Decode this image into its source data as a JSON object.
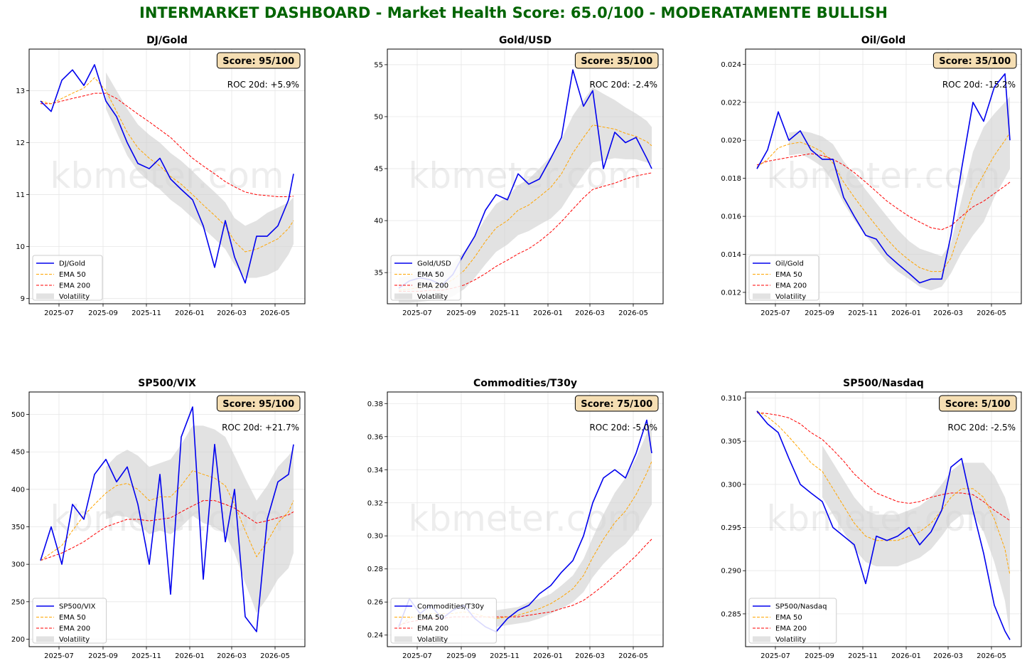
{
  "dashboard": {
    "title": "INTERMARKET DASHBOARD - Market Health Score: 65.0/100 - MODERATAMENTE BULLISH",
    "watermark": "kbmeter.com",
    "colors": {
      "title": "#006400",
      "price": "#0000ee",
      "ema50": "#ffa500",
      "ema200": "#ff0000",
      "volatility": "#d3d3d3",
      "score_box": "#f5deb3"
    },
    "x_ticks": [
      "2025-07",
      "2025-09",
      "2025-11",
      "2026-01",
      "2026-03",
      "2026-05"
    ],
    "legend_labels": {
      "ema50": "EMA 50",
      "ema200": "EMA 200",
      "vol": "Volatility"
    }
  },
  "chart_data": [
    {
      "type": "line",
      "title": "DJ/Gold",
      "score": "Score: 95/100",
      "roc": "ROC 20d: +5.9%",
      "ylim": [
        8.9,
        13.8
      ],
      "yticks": [
        "9",
        "10",
        "11",
        "12",
        "13"
      ],
      "ytick_values": [
        9,
        10,
        11,
        12,
        13
      ],
      "x": [
        "2025-06-05",
        "2025-06-20",
        "2025-07-05",
        "2025-07-20",
        "2025-08-05",
        "2025-08-20",
        "2025-09-05",
        "2025-09-20",
        "2025-10-05",
        "2025-10-20",
        "2025-11-05",
        "2025-11-20",
        "2025-12-05",
        "2025-12-20",
        "2026-01-05",
        "2026-01-20",
        "2026-02-05",
        "2026-02-20",
        "2026-03-05",
        "2026-03-20",
        "2026-04-05",
        "2026-04-20",
        "2026-05-05",
        "2026-05-20",
        "2026-05-27"
      ],
      "series": [
        {
          "name": "DJ/Gold",
          "role": "price",
          "values": [
            12.8,
            12.6,
            13.2,
            13.4,
            13.1,
            13.5,
            12.8,
            12.5,
            12.0,
            11.6,
            11.5,
            11.7,
            11.3,
            11.1,
            10.9,
            10.4,
            9.6,
            10.5,
            9.8,
            9.3,
            10.2,
            10.2,
            10.4,
            10.9,
            11.4
          ]
        },
        {
          "name": "EMA 50",
          "values": [
            12.8,
            12.75,
            12.85,
            12.95,
            13.05,
            13.25,
            13.0,
            12.6,
            12.2,
            11.9,
            11.7,
            11.55,
            11.35,
            11.2,
            11.0,
            10.8,
            10.6,
            10.4,
            10.1,
            9.9,
            9.95,
            10.05,
            10.15,
            10.35,
            10.5
          ]
        },
        {
          "name": "EMA 200",
          "values": [
            12.75,
            12.75,
            12.8,
            12.85,
            12.9,
            12.95,
            12.95,
            12.85,
            12.7,
            12.55,
            12.4,
            12.25,
            12.1,
            11.9,
            11.7,
            11.55,
            11.4,
            11.25,
            11.15,
            11.05,
            11.0,
            10.98,
            10.96,
            10.96,
            10.97
          ]
        }
      ],
      "vol_from": 6,
      "vol_half": [
        0.35,
        0.4,
        0.45,
        0.45,
        0.45,
        0.45,
        0.45,
        0.45,
        0.45,
        0.45,
        0.45,
        0.45,
        0.45,
        0.5,
        0.55,
        0.6,
        0.6,
        0.5,
        0.45
      ]
    },
    {
      "type": "line",
      "title": "Gold/USD",
      "score": "Score: 35/100",
      "roc": "ROC 20d: -2.4%",
      "ylim": [
        32,
        56.5
      ],
      "yticks": [
        "35",
        "40",
        "45",
        "50",
        "55"
      ],
      "ytick_values": [
        35,
        40,
        45,
        50,
        55
      ],
      "x": [
        "2025-06-05",
        "2025-06-20",
        "2025-07-05",
        "2025-07-20",
        "2025-08-05",
        "2025-08-20",
        "2025-09-05",
        "2025-09-20",
        "2025-10-05",
        "2025-10-20",
        "2025-11-05",
        "2025-11-20",
        "2025-12-05",
        "2025-12-20",
        "2026-01-05",
        "2026-01-20",
        "2026-02-05",
        "2026-02-20",
        "2026-03-05",
        "2026-03-20",
        "2026-04-05",
        "2026-04-20",
        "2026-05-05",
        "2026-05-20",
        "2026-05-27"
      ],
      "series": [
        {
          "name": "Gold/USD",
          "role": "price",
          "values": [
            33.5,
            34.2,
            34.5,
            34.3,
            33.8,
            34.8,
            36.8,
            38.5,
            41.0,
            42.5,
            42.0,
            44.5,
            43.5,
            44.0,
            46.0,
            48.0,
            54.5,
            51.0,
            52.5,
            45.0,
            48.5,
            47.5,
            48.0,
            46.0,
            45.0
          ]
        },
        {
          "name": "EMA 50",
          "values": [
            33.3,
            33.4,
            33.6,
            33.7,
            33.8,
            34.3,
            35.2,
            36.5,
            38.0,
            39.3,
            40.0,
            41.0,
            41.5,
            42.3,
            43.2,
            44.5,
            46.5,
            48.0,
            49.2,
            49.0,
            48.8,
            48.4,
            48.1,
            47.6,
            47.2
          ]
        },
        {
          "name": "EMA 200",
          "values": [
            33.2,
            33.2,
            33.2,
            33.3,
            33.3,
            33.5,
            33.8,
            34.3,
            34.9,
            35.6,
            36.2,
            36.8,
            37.3,
            38.0,
            38.9,
            39.9,
            41.1,
            42.2,
            43.0,
            43.3,
            43.6,
            44.0,
            44.3,
            44.5,
            44.6
          ]
        }
      ],
      "vol_from": 0,
      "vol_half": [
        1.2,
        1.3,
        1.4,
        1.4,
        1.5,
        1.6,
        1.8,
        2.0,
        2.2,
        2.3,
        2.3,
        2.4,
        2.5,
        2.7,
        3.0,
        3.3,
        3.6,
        3.6,
        3.6,
        3.2,
        2.8,
        2.5,
        2.2,
        2.0,
        1.8
      ]
    },
    {
      "type": "line",
      "title": "Oil/Gold",
      "score": "Score: 35/100",
      "roc": "ROC 20d: -15.2%",
      "ylim": [
        0.0114,
        0.0248
      ],
      "yticks": [
        "0.012",
        "0.014",
        "0.016",
        "0.018",
        "0.020",
        "0.022",
        "0.024"
      ],
      "ytick_values": [
        0.012,
        0.014,
        0.016,
        0.018,
        0.02,
        0.022,
        0.024
      ],
      "x": [
        "2025-06-05",
        "2025-06-20",
        "2025-07-05",
        "2025-07-20",
        "2025-08-05",
        "2025-08-20",
        "2025-09-05",
        "2025-09-20",
        "2025-10-05",
        "2025-10-20",
        "2025-11-05",
        "2025-11-20",
        "2025-12-05",
        "2025-12-20",
        "2026-01-05",
        "2026-01-20",
        "2026-02-05",
        "2026-02-20",
        "2026-03-05",
        "2026-03-20",
        "2026-04-05",
        "2026-04-20",
        "2026-05-05",
        "2026-05-20",
        "2026-05-27"
      ],
      "series": [
        {
          "name": "Oil/Gold",
          "role": "price",
          "values": [
            0.0185,
            0.0195,
            0.0215,
            0.02,
            0.0205,
            0.0195,
            0.019,
            0.019,
            0.017,
            0.016,
            0.015,
            0.0148,
            0.014,
            0.0135,
            0.013,
            0.0125,
            0.0127,
            0.0127,
            0.015,
            0.0185,
            0.022,
            0.021,
            0.0228,
            0.0235,
            0.02
          ]
        },
        {
          "name": "EMA 50",
          "values": [
            0.0186,
            0.019,
            0.0196,
            0.0198,
            0.0199,
            0.0197,
            0.0194,
            0.0188,
            0.0178,
            0.017,
            0.0162,
            0.0155,
            0.0148,
            0.0142,
            0.0137,
            0.0133,
            0.0131,
            0.0131,
            0.0138,
            0.0155,
            0.0172,
            0.0182,
            0.0192,
            0.02,
            0.0204
          ]
        },
        {
          "name": "EMA 200",
          "values": [
            0.0187,
            0.0189,
            0.019,
            0.0191,
            0.0192,
            0.0193,
            0.0192,
            0.019,
            0.0187,
            0.0183,
            0.0178,
            0.0173,
            0.0168,
            0.0164,
            0.016,
            0.0157,
            0.0154,
            0.0153,
            0.0155,
            0.016,
            0.0165,
            0.0168,
            0.0172,
            0.0176,
            0.0178
          ]
        }
      ],
      "vol_from": 3,
      "vol_half": [
        0.0006,
        0.0006,
        0.0007,
        0.0008,
        0.001,
        0.0011,
        0.0012,
        0.0012,
        0.0012,
        0.0012,
        0.0011,
        0.001,
        0.001,
        0.001,
        0.0008,
        0.0008,
        0.0014,
        0.0022,
        0.0025,
        0.0022,
        0.002,
        0.0019
      ]
    },
    {
      "type": "line",
      "title": "SP500/VIX",
      "score": "Score: 95/100",
      "roc": "ROC 20d: +21.7%",
      "ylim": [
        190,
        530
      ],
      "yticks": [
        "200",
        "250",
        "300",
        "350",
        "400",
        "450",
        "500"
      ],
      "ytick_values": [
        200,
        250,
        300,
        350,
        400,
        450,
        500
      ],
      "x": [
        "2025-06-05",
        "2025-06-20",
        "2025-07-05",
        "2025-07-20",
        "2025-08-05",
        "2025-08-20",
        "2025-09-05",
        "2025-09-20",
        "2025-10-05",
        "2025-10-20",
        "2025-11-05",
        "2025-11-20",
        "2025-12-05",
        "2025-12-20",
        "2026-01-05",
        "2026-01-20",
        "2026-02-05",
        "2026-02-20",
        "2026-03-05",
        "2026-03-20",
        "2026-04-05",
        "2026-04-20",
        "2026-05-05",
        "2026-05-20",
        "2026-05-27"
      ],
      "series": [
        {
          "name": "SP500/VIX",
          "role": "price",
          "values": [
            305,
            350,
            300,
            380,
            360,
            420,
            440,
            410,
            430,
            380,
            300,
            420,
            260,
            470,
            510,
            280,
            460,
            330,
            400,
            230,
            210,
            360,
            410,
            420,
            460
          ]
        },
        {
          "name": "EMA 50",
          "values": [
            305,
            315,
            325,
            345,
            365,
            380,
            395,
            405,
            408,
            400,
            385,
            390,
            390,
            405,
            425,
            420,
            415,
            405,
            380,
            345,
            310,
            330,
            355,
            370,
            385
          ]
        },
        {
          "name": "EMA 200",
          "values": [
            305,
            310,
            315,
            322,
            330,
            340,
            350,
            355,
            360,
            360,
            358,
            360,
            362,
            370,
            378,
            385,
            385,
            380,
            375,
            365,
            355,
            358,
            362,
            366,
            370
          ]
        }
      ],
      "vol_from": 6,
      "vol_half": [
        35,
        40,
        45,
        45,
        45,
        45,
        50,
        55,
        60,
        65,
        65,
        65,
        65,
        70,
        75,
        75,
        75,
        75,
        70
      ]
    },
    {
      "type": "line",
      "title": "Commodities/T30y",
      "score": "Score: 75/100",
      "roc": "ROC 20d: -5.0%",
      "ylim": [
        0.233,
        0.387
      ],
      "yticks": [
        "0.24",
        "0.26",
        "0.28",
        "0.30",
        "0.32",
        "0.34",
        "0.36",
        "0.38"
      ],
      "ytick_values": [
        0.24,
        0.26,
        0.28,
        0.3,
        0.32,
        0.34,
        0.36,
        0.38
      ],
      "x": [
        "2025-06-05",
        "2025-06-20",
        "2025-07-05",
        "2025-07-20",
        "2025-08-05",
        "2025-08-20",
        "2025-09-05",
        "2025-09-20",
        "2025-10-05",
        "2025-10-20",
        "2025-11-05",
        "2025-11-20",
        "2025-12-05",
        "2025-12-20",
        "2026-01-05",
        "2026-01-20",
        "2026-02-05",
        "2026-02-20",
        "2026-03-05",
        "2026-03-20",
        "2026-04-05",
        "2026-04-20",
        "2026-05-05",
        "2026-05-20",
        "2026-05-27"
      ],
      "series": [
        {
          "name": "Commodities/T30y",
          "role": "price",
          "values": [
            0.245,
            0.262,
            0.253,
            0.258,
            0.25,
            0.255,
            0.258,
            0.25,
            0.245,
            0.242,
            0.25,
            0.255,
            0.258,
            0.265,
            0.27,
            0.278,
            0.285,
            0.3,
            0.32,
            0.335,
            0.34,
            0.335,
            0.35,
            0.37,
            0.35
          ]
        },
        {
          "name": "EMA 50",
          "values": [
            0.245,
            0.25,
            0.252,
            0.253,
            0.253,
            0.253,
            0.254,
            0.253,
            0.251,
            0.25,
            0.251,
            0.252,
            0.254,
            0.256,
            0.259,
            0.263,
            0.268,
            0.276,
            0.287,
            0.298,
            0.308,
            0.315,
            0.325,
            0.338,
            0.345
          ]
        },
        {
          "name": "EMA 200",
          "values": [
            0.246,
            0.248,
            0.249,
            0.25,
            0.25,
            0.251,
            0.251,
            0.251,
            0.251,
            0.251,
            0.251,
            0.251,
            0.252,
            0.253,
            0.254,
            0.256,
            0.258,
            0.261,
            0.265,
            0.27,
            0.276,
            0.282,
            0.288,
            0.295,
            0.298
          ]
        }
      ],
      "vol_from": 9,
      "vol_half": [
        0.005,
        0.005,
        0.005,
        0.006,
        0.006,
        0.006,
        0.007,
        0.008,
        0.01,
        0.012,
        0.015,
        0.018,
        0.02,
        0.022,
        0.024,
        0.026
      ]
    },
    {
      "type": "line",
      "title": "SP500/Nasdaq",
      "score": "Score: 5/100",
      "roc": "ROC 20d: -2.5%",
      "ylim": [
        0.2812,
        0.3107
      ],
      "yticks": [
        "0.285",
        "0.290",
        "0.295",
        "0.300",
        "0.305",
        "0.310"
      ],
      "ytick_values": [
        0.285,
        0.29,
        0.295,
        0.3,
        0.305,
        0.31
      ],
      "x": [
        "2025-06-05",
        "2025-06-20",
        "2025-07-05",
        "2025-07-20",
        "2025-08-05",
        "2025-08-20",
        "2025-09-05",
        "2025-09-20",
        "2025-10-05",
        "2025-10-20",
        "2025-11-05",
        "2025-11-20",
        "2025-12-05",
        "2025-12-20",
        "2026-01-05",
        "2026-01-20",
        "2026-02-05",
        "2026-02-20",
        "2026-03-05",
        "2026-03-20",
        "2026-04-05",
        "2026-04-20",
        "2026-05-05",
        "2026-05-20",
        "2026-05-27"
      ],
      "series": [
        {
          "name": "SP500/Nasdaq",
          "role": "price",
          "values": [
            0.3085,
            0.307,
            0.306,
            0.303,
            0.3,
            0.299,
            0.298,
            0.295,
            0.294,
            0.293,
            0.2885,
            0.294,
            0.2935,
            0.294,
            0.295,
            0.293,
            0.2945,
            0.297,
            0.302,
            0.303,
            0.297,
            0.292,
            0.286,
            0.283,
            0.282
          ]
        },
        {
          "name": "EMA 50",
          "values": [
            0.3085,
            0.3078,
            0.3068,
            0.3055,
            0.304,
            0.3025,
            0.3015,
            0.2995,
            0.2975,
            0.2955,
            0.294,
            0.2935,
            0.2935,
            0.2935,
            0.294,
            0.2945,
            0.2955,
            0.297,
            0.2985,
            0.2995,
            0.2995,
            0.2985,
            0.296,
            0.2925,
            0.2895
          ]
        },
        {
          "name": "EMA 200",
          "values": [
            0.3083,
            0.3082,
            0.308,
            0.3077,
            0.307,
            0.306,
            0.3052,
            0.304,
            0.3027,
            0.3012,
            0.3,
            0.299,
            0.2985,
            0.298,
            0.2978,
            0.298,
            0.2985,
            0.2988,
            0.299,
            0.299,
            0.2988,
            0.298,
            0.297,
            0.2962,
            0.2958
          ]
        }
      ],
      "vol_from": 6,
      "vol_half": [
        0.003,
        0.003,
        0.003,
        0.003,
        0.003,
        0.003,
        0.003,
        0.003,
        0.003,
        0.003,
        0.003,
        0.003,
        0.003,
        0.003,
        0.003,
        0.004,
        0.005,
        0.006,
        0.007
      ]
    }
  ]
}
